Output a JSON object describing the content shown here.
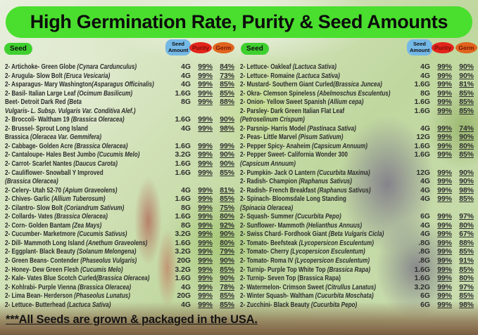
{
  "title": "High Germination Rate, Purity & Seed Amounts",
  "headers": {
    "seed": "Seed",
    "seed_amount": "Seed Amount",
    "purity": "Purity",
    "germ": "Germ"
  },
  "footer": "***All Seeds are grown & packaged in the USA.",
  "colors": {
    "banner_green": "#4ade2e",
    "badge_green": "#3fd02f",
    "badge_blue": "#74b8e6",
    "badge_red": "#e2241b",
    "badge_orange": "#e0641e",
    "purity_text": "#7e0b06",
    "germ_text": "#7a1606",
    "ink": "#2d2d2d"
  },
  "table": {
    "left": [
      {
        "n": "2- Artichoke- Green Globe ",
        "i": "(Cynara Cardunculus)",
        "amt": "4G",
        "pur": "99%",
        "germ": "84%"
      },
      {
        "n": "2- Arugula- Slow Bolt ",
        "i": "(Eruca Vesicaria)",
        "amt": "4G",
        "pur": "99%",
        "germ": "73%"
      },
      {
        "n": "2- Asparagus- Mary Washington",
        "i": "(Asparagus Officinalis)",
        "amt": "4G",
        "pur": "99%",
        "germ": "85%"
      },
      {
        "n": "2- Basil- Italian Large Leaf ",
        "i": "(Ocimum Basilicum)",
        "amt": "1.6G",
        "pur": "99%",
        "germ": "85%"
      },
      {
        "n": "Beet- Detroit Dark Red ",
        "i": "(Beta",
        "n2": "",
        "i2": "Vulgaris- L. Subsp. Vulgaris Var. Conditiva Alef.)",
        "amt": "8G",
        "pur": "99%",
        "germ": "88%"
      },
      {
        "n": "2- Broccoli- Waltham 19 ",
        "i": "(Brassica Oleracea)",
        "amt": "1.6G",
        "pur": "99%",
        "germ": "90%"
      },
      {
        "n": "2- Brussel- Sprout Long Island",
        "i": "",
        "n2": "Brassica ",
        "i2": "(Oleracea Var. Gemmifera)",
        "amt": "4G",
        "pur": "99%",
        "germ": "98%"
      },
      {
        "n": "2- Cabbage- Golden Acre ",
        "i": "(Brassica Oleracea)",
        "amt": "1.6G",
        "pur": "99%",
        "germ": "99%"
      },
      {
        "n": "2- Cantaloupe- Hales Best Jumbo ",
        "i": "(Cucumis Melo)",
        "amt": "3.2G",
        "pur": "99%",
        "germ": "90%"
      },
      {
        "n": "2- Carrot- Scarlet Nantes ",
        "i": "(Daucus Carota)",
        "amt": "1.6G",
        "pur": "99%",
        "germ": "90%"
      },
      {
        "n": "2- Cauliflower- Snowball Y Improved",
        "i": "",
        "n2": "",
        "i2": "(Brassica Oleracea)",
        "amt": "1.6G",
        "pur": "99%",
        "germ": "85%"
      },
      {
        "n": "2- Celery- Utah 52-70 ",
        "i": "(Apium Graveolens)",
        "amt": "4G",
        "pur": "99%",
        "germ": "81%"
      },
      {
        "n": "2- Chives- Garlic ",
        "i": "(Allium Tuberosum)",
        "amt": "1.6G",
        "pur": "99%",
        "germ": "85%"
      },
      {
        "n": "2- Cilantro- Slow Bolt ",
        "i": "(Coriandrum Sativum)",
        "amt": "8G",
        "pur": "99%",
        "germ": "75%"
      },
      {
        "n": "2- Collards- Vates ",
        "i": "(Brassica Oleracea)",
        "amt": "1.6G",
        "pur": "99%",
        "germ": "80%"
      },
      {
        "n": "2- Corn- Golden Bantam ",
        "i": "(Zea Mays)",
        "amt": "8G",
        "pur": "99%",
        "germ": "92%"
      },
      {
        "n": "2- Cucumber- Marketmore ",
        "i": "(Cucumis Sativus)",
        "amt": "3.2G",
        "pur": "99%",
        "germ": "90%"
      },
      {
        "n": "2- Dill- Mammoth Long Island ",
        "i": "(Anethum Graveolens)",
        "amt": "1.6G",
        "pur": "99%",
        "germ": "80%"
      },
      {
        "n": "2- Eggplant- Black Beauty ",
        "i": "(Solanum Melongena)",
        "amt": "3.2G",
        "pur": "99%",
        "germ": "79%"
      },
      {
        "n": "2- Green Beans- Contender ",
        "i": "(Phaseolus Vulgaris)",
        "amt": "20G",
        "pur": "99%",
        "germ": "90%"
      },
      {
        "n": "2- Honey- Dew Green Flesh ",
        "i": "(Cucumis Melo)",
        "amt": "3.2G",
        "pur": "99%",
        "germ": "85%"
      },
      {
        "n": "2- Kale- Vates Blue Scotch Curled",
        "i": "(Brassica Oleracea)",
        "amt": "1.6G",
        "pur": "99%",
        "germ": "90%"
      },
      {
        "n": "2- Kohlrabi- Purple Vienna ",
        "i": "(Brassica Oleracea)",
        "amt": "4G",
        "pur": "99%",
        "germ": "78%"
      },
      {
        "n": "2- Lima Bean- Herderson ",
        "i": "(Phaseolus Lunatus)",
        "amt": "20G",
        "pur": "99%",
        "germ": "85%"
      },
      {
        "n": "2- Lettuce- Butterhead ",
        "i": "(Lactuca Sativa)",
        "amt": "4G",
        "pur": "99%",
        "germ": "85%"
      }
    ],
    "right": [
      {
        "n": "2- Lettuce- Oakleaf ",
        "i": "(Lactuca Sativa)",
        "amt": "4G",
        "pur": "99%",
        "germ": "90%"
      },
      {
        "n": "2- Lettuce- Romaine ",
        "i": "(Lactuca Sativa)",
        "amt": "4G",
        "pur": "99%",
        "germ": "90%"
      },
      {
        "n": "2- Mustard- Southern Giant Curled",
        "i": "(Brassica Juncea)",
        "amt": "1.6G",
        "pur": "99%",
        "germ": "81%"
      },
      {
        "n": "2- Okra- Clemson Spineless ",
        "i": "(Abelmoschus Esculentus)",
        "amt": "8G",
        "pur": "99%",
        "germ": "85%"
      },
      {
        "n": "2- Onion- Yellow Sweet Spanish ",
        "i": "(Allium cepa)",
        "amt": "1.6G",
        "pur": "99%",
        "germ": "85%"
      },
      {
        "n": "2- Parsley- Dark Green Italian Flat Leaf",
        "i": "",
        "n2": "",
        "i2": "(Petroselinum Crispum)",
        "amt": "1.6G",
        "pur": "99%",
        "germ": "85%"
      },
      {
        "n": "2- Parsnip- Harris Model ",
        "i": "(Pastinaca Sativa)",
        "amt": "4G",
        "pur": "99%",
        "germ": "74%"
      },
      {
        "n": "2- Peas- Little Marvel ",
        "i": "(Pisum Sativum)",
        "amt": "12G",
        "pur": "99%",
        "germ": "90%"
      },
      {
        "n": "2- Pepper Spicy- Anaheim ",
        "i": "(Capsicum Annuum)",
        "amt": "1.6G",
        "pur": "99%",
        "germ": "80%"
      },
      {
        "n": "2- Pepper Sweet- California Wonder 300",
        "i": "",
        "n2": "",
        "i2": "(Capsicum Annuum)",
        "amt": "1.6G",
        "pur": "99%",
        "germ": "85%"
      },
      {
        "n": "2- Pumpkin- Jack O Lantern ",
        "i": "(Cucurbita Maxima)",
        "amt": "12G",
        "pur": "99%",
        "germ": "90%"
      },
      {
        "n": "2- Radish- Champion ",
        "i": "(Raphanus Sativus)",
        "amt": "4G",
        "pur": "99%",
        "germ": "90%"
      },
      {
        "n": "2- Radish- French Breakfast ",
        "i": "(Raphanus Sativus)",
        "amt": "4G",
        "pur": "99%",
        "germ": "98%"
      },
      {
        "n": "2- Spinach- Bloomsdale Long Standing",
        "i": "",
        "n2": "",
        "i2": "(Spinacia Oleracea)",
        "amt": "4G",
        "pur": "99%",
        "germ": "85%"
      },
      {
        "n": "2- Squash- Summer ",
        "i": "(Cucurbita Pepo)",
        "amt": "6G",
        "pur": "99%",
        "germ": "97%"
      },
      {
        "n": "2- Sunflower- Mammoth ",
        "i": "(Helianthus Annuus)",
        "amt": "4G",
        "pur": "99%",
        "germ": "80%"
      },
      {
        "n": "2- Swiss Chard- Fordhook Giant ",
        "i": "(Beta Vulgaris Cicla)",
        "amt": "4G",
        "pur": "99%",
        "germ": "67%"
      },
      {
        "n": "2- Tomato- Beefsteak ",
        "i": "(Lycopersicon Esculentum)",
        "amt": ".8G",
        "pur": "99%",
        "germ": "88%"
      },
      {
        "n": "2- Tomato- Cherry ",
        "i": "(Lycopersicon Esculentum)",
        "amt": ".8G",
        "pur": "99%",
        "germ": "85%"
      },
      {
        "n": "2- Tomato- Roma IV ",
        "i": "(Lycopersicon Esculentum)",
        "amt": ".8G",
        "pur": "99%",
        "germ": "91%"
      },
      {
        "n": "2- Turnip- Purple Top White Top ",
        "i": "(Brassica Rapa)",
        "amt": "1.6G",
        "pur": "99%",
        "germ": "85%"
      },
      {
        "n": "2- Turnip- Seven Top (Brassica Rapa)",
        "i": "",
        "amt": "1.6G",
        "pur": "99%",
        "germ": "80%"
      },
      {
        "n": "2- Watermelon- Crimson Sweet ",
        "i": "(Citrullus Lanatus)",
        "amt": "3.2G",
        "pur": "99%",
        "germ": "97%"
      },
      {
        "n": "2- Winter Squash- Waltham ",
        "i": "(Cucurbita Moschata)",
        "amt": "6G",
        "pur": "99%",
        "germ": "85%"
      },
      {
        "n": "2- Zucchini-  Black Beauty ",
        "i": "(Cucurbita Pepo)",
        "amt": "6G",
        "pur": "99%",
        "germ": "98%"
      }
    ]
  }
}
